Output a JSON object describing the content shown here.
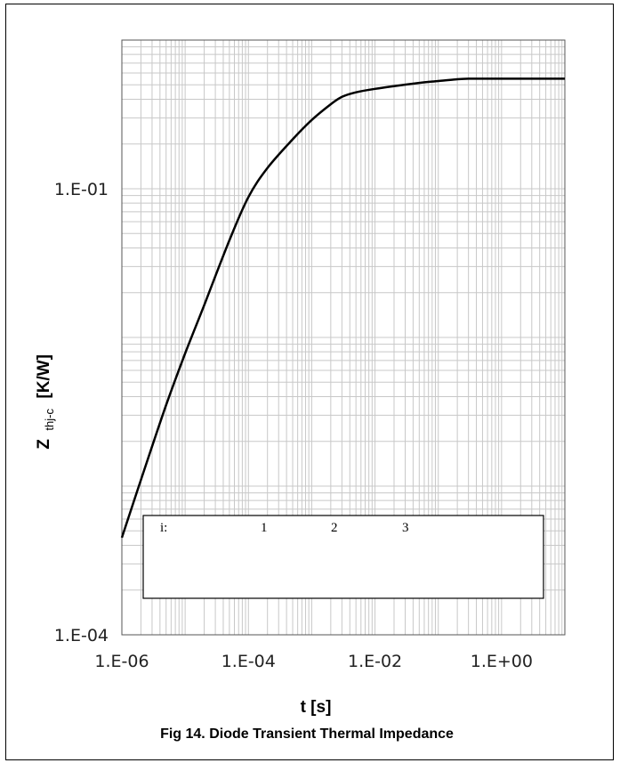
{
  "chart_data": {
    "type": "line",
    "title": "",
    "xlabel": "t  [s]",
    "ylabel_main": "Z",
    "ylabel_sub": "thj-c",
    "ylabel_unit": "[K/W]",
    "xscale": "log",
    "yscale": "log",
    "xlim": [
      1e-06,
      10
    ],
    "ylim": [
      0.0001,
      1
    ],
    "grid": true,
    "x_tick_labels": [
      "1.E-06",
      "1.E-04",
      "1.E-02",
      "1.E+00"
    ],
    "y_tick_labels": [
      "1.E-04",
      "1.E-01"
    ],
    "series": [
      {
        "x": [
          1e-06,
          2e-06,
          5e-06,
          1e-05,
          2e-05,
          5e-05,
          0.0001,
          0.0002,
          0.0005,
          0.001,
          0.002,
          0.003,
          0.005,
          0.01,
          0.02,
          0.05,
          0.1,
          0.2,
          0.3,
          0.5,
          1,
          2,
          5,
          10
        ],
        "y": [
          0.00045,
          0.0011,
          0.0035,
          0.0078,
          0.0165,
          0.045,
          0.088,
          0.138,
          0.215,
          0.29,
          0.37,
          0.415,
          0.445,
          0.47,
          0.49,
          0.515,
          0.53,
          0.545,
          0.55,
          0.55,
          0.55,
          0.55,
          0.55,
          0.55
        ],
        "color": "#000000"
      }
    ],
    "legend_table": {
      "header": [
        "i:",
        "1",
        "2",
        "3"
      ]
    },
    "caption": "Fig 14. Diode Transient Thermal Impedance"
  }
}
